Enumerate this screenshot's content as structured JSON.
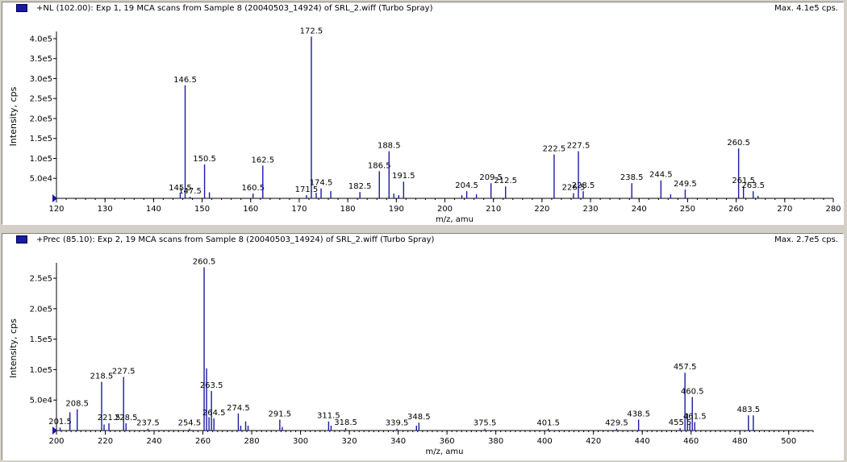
{
  "colors": {
    "peak": "#1a1aa6",
    "axis": "#000000",
    "background": "#ffffff",
    "chrome": "#d4d0c8"
  },
  "panels": [
    {
      "title": "+NL (102.00): Exp 1, 19 MCA scans from Sample 8 (20040503_14924) of SRL_2.wiff (Turbo Spray)",
      "max_label": "Max. 4.1e5 cps."
    },
    {
      "title": "+Prec (85.10): Exp 2, 19 MCA scans from Sample 8 (20040503_14924) of SRL_2.wiff (Turbo Spray)",
      "max_label": "Max. 2.7e5 cps."
    }
  ],
  "chart_data": [
    {
      "type": "bar",
      "title": "+NL (102.00): Exp 1, 19 MCA scans from Sample 8 (20040503_14924) of SRL_2.wiff (Turbo Spray)",
      "xlabel": "m/z, amu",
      "ylabel": "Intensity, cps",
      "xlim": [
        120,
        280
      ],
      "ylim": [
        0,
        410000
      ],
      "xticks": [
        120,
        130,
        140,
        150,
        160,
        170,
        180,
        190,
        200,
        210,
        220,
        230,
        240,
        250,
        260,
        270,
        280
      ],
      "yticks": [
        {
          "value": 50000,
          "label": "5.0e4"
        },
        {
          "value": 100000,
          "label": "1.0e5"
        },
        {
          "value": 150000,
          "label": "1.5e5"
        },
        {
          "value": 200000,
          "label": "2.0e5"
        },
        {
          "value": 250000,
          "label": "2.5e5"
        },
        {
          "value": 300000,
          "label": "3.0e5"
        },
        {
          "value": 350000,
          "label": "3.5e5"
        },
        {
          "value": 400000,
          "label": "4.0e5"
        }
      ],
      "grid": false,
      "peaks": [
        {
          "mz": 145.5,
          "y": 12000,
          "label": "145.5"
        },
        {
          "mz": 146.5,
          "y": 283000,
          "label": "146.5"
        },
        {
          "mz": 147.5,
          "y": 4000,
          "label": "147.5"
        },
        {
          "mz": 150.5,
          "y": 85000,
          "label": "150.5"
        },
        {
          "mz": 151.5,
          "y": 15000
        },
        {
          "mz": 160.5,
          "y": 12000,
          "label": "160.5"
        },
        {
          "mz": 162.5,
          "y": 82000,
          "label": "162.5"
        },
        {
          "mz": 171.5,
          "y": 8000,
          "label": "171.5"
        },
        {
          "mz": 172.5,
          "y": 405000,
          "label": "172.5"
        },
        {
          "mz": 173.5,
          "y": 14000
        },
        {
          "mz": 174.5,
          "y": 25000,
          "label": "174.5"
        },
        {
          "mz": 176.5,
          "y": 18000
        },
        {
          "mz": 182.5,
          "y": 16000,
          "label": "182.5"
        },
        {
          "mz": 186.5,
          "y": 68000,
          "label": "186.5"
        },
        {
          "mz": 188.5,
          "y": 118000,
          "label": "188.5"
        },
        {
          "mz": 189.5,
          "y": 12000
        },
        {
          "mz": 190.5,
          "y": 8000
        },
        {
          "mz": 191.5,
          "y": 42000,
          "label": "191.5"
        },
        {
          "mz": 203.5,
          "y": 8000
        },
        {
          "mz": 204.5,
          "y": 18000,
          "label": "204.5"
        },
        {
          "mz": 206.5,
          "y": 10000
        },
        {
          "mz": 209.5,
          "y": 38000,
          "label": "209.5"
        },
        {
          "mz": 212.5,
          "y": 30000,
          "label": "212.5"
        },
        {
          "mz": 222.5,
          "y": 110000,
          "label": "222.5"
        },
        {
          "mz": 226.5,
          "y": 13000,
          "label": "226.5"
        },
        {
          "mz": 227.5,
          "y": 118000,
          "label": "227.5"
        },
        {
          "mz": 228.5,
          "y": 18000,
          "label": "228.5"
        },
        {
          "mz": 238.5,
          "y": 38000,
          "label": "238.5"
        },
        {
          "mz": 244.5,
          "y": 45000,
          "label": "244.5"
        },
        {
          "mz": 246.5,
          "y": 10000
        },
        {
          "mz": 249.5,
          "y": 22000,
          "label": "249.5"
        },
        {
          "mz": 260.5,
          "y": 125000,
          "label": "260.5"
        },
        {
          "mz": 261.5,
          "y": 30000,
          "label": "261.5"
        },
        {
          "mz": 263.5,
          "y": 18000,
          "label": "263.5"
        },
        {
          "mz": 264.5,
          "y": 6000
        }
      ]
    },
    {
      "type": "bar",
      "title": "+Prec (85.10): Exp 2, 19 MCA scans from Sample 8 (20040503_14924) of SRL_2.wiff (Turbo Spray)",
      "xlabel": "m/z, amu",
      "ylabel": "Intensity, cps",
      "xlim": [
        200,
        510
      ],
      "ylim": [
        0,
        270000
      ],
      "xticks": [
        200,
        220,
        240,
        260,
        280,
        300,
        320,
        340,
        360,
        380,
        400,
        420,
        440,
        460,
        480,
        500
      ],
      "yticks": [
        {
          "value": 50000,
          "label": "5.0e4"
        },
        {
          "value": 100000,
          "label": "1.0e5"
        },
        {
          "value": 150000,
          "label": "1.5e5"
        },
        {
          "value": 200000,
          "label": "2.0e5"
        },
        {
          "value": 250000,
          "label": "2.5e5"
        }
      ],
      "grid": false,
      "peaks": [
        {
          "mz": 201.5,
          "y": 5000,
          "label": "201.5"
        },
        {
          "mz": 205.5,
          "y": 30000
        },
        {
          "mz": 208.5,
          "y": 35000,
          "label": "208.5"
        },
        {
          "mz": 218.5,
          "y": 80000,
          "label": "218.5"
        },
        {
          "mz": 219.5,
          "y": 10000
        },
        {
          "mz": 221.5,
          "y": 12000,
          "label": "221.5"
        },
        {
          "mz": 227.5,
          "y": 88000,
          "label": "227.5"
        },
        {
          "mz": 228.5,
          "y": 12000,
          "label": "228.5"
        },
        {
          "mz": 237.5,
          "y": 3000,
          "label": "237.5"
        },
        {
          "mz": 254.5,
          "y": 3000,
          "label": "254.5"
        },
        {
          "mz": 260.5,
          "y": 268000,
          "label": "260.5"
        },
        {
          "mz": 261.5,
          "y": 102000
        },
        {
          "mz": 262.5,
          "y": 22000
        },
        {
          "mz": 263.5,
          "y": 65000,
          "label": "263.5"
        },
        {
          "mz": 264.5,
          "y": 20000,
          "label": "264.5"
        },
        {
          "mz": 274.5,
          "y": 28000,
          "label": "274.5"
        },
        {
          "mz": 275.5,
          "y": 8000
        },
        {
          "mz": 277.5,
          "y": 15000
        },
        {
          "mz": 278.5,
          "y": 8000
        },
        {
          "mz": 291.5,
          "y": 18000,
          "label": "291.5"
        },
        {
          "mz": 292.5,
          "y": 6000
        },
        {
          "mz": 311.5,
          "y": 15000,
          "label": "311.5"
        },
        {
          "mz": 312.5,
          "y": 8000
        },
        {
          "mz": 318.5,
          "y": 4000,
          "label": "318.5"
        },
        {
          "mz": 339.5,
          "y": 3000,
          "label": "339.5"
        },
        {
          "mz": 347.5,
          "y": 8000
        },
        {
          "mz": 348.5,
          "y": 13000,
          "label": "348.5"
        },
        {
          "mz": 375.5,
          "y": 3000,
          "label": "375.5"
        },
        {
          "mz": 401.5,
          "y": 3000,
          "label": "401.5"
        },
        {
          "mz": 429.5,
          "y": 3000,
          "label": "429.5"
        },
        {
          "mz": 438.5,
          "y": 18000,
          "label": "438.5"
        },
        {
          "mz": 455.5,
          "y": 4000,
          "label": "455.5"
        },
        {
          "mz": 457.5,
          "y": 95000,
          "label": "457.5"
        },
        {
          "mz": 458.5,
          "y": 28000
        },
        {
          "mz": 459.5,
          "y": 12000
        },
        {
          "mz": 460.5,
          "y": 55000,
          "label": "460.5"
        },
        {
          "mz": 461.5,
          "y": 14000,
          "label": "461.5"
        },
        {
          "mz": 483.5,
          "y": 25000,
          "label": "483.5"
        },
        {
          "mz": 485.5,
          "y": 25000
        }
      ]
    }
  ]
}
